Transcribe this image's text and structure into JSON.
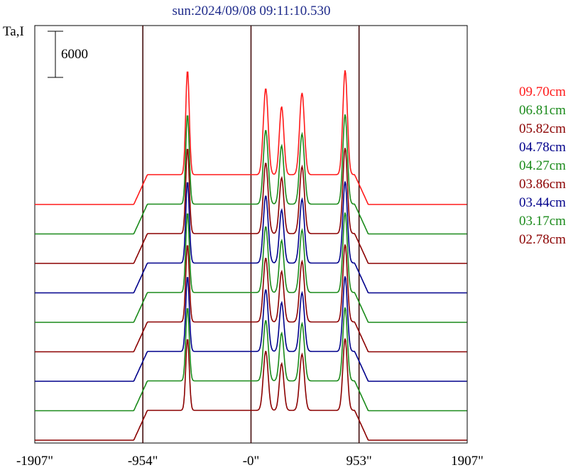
{
  "chart_data": {
    "type": "line",
    "title": "sun:2024/09/08 09:11:10.530",
    "ylabel": "Ta,I",
    "scale_bar_label": "6000",
    "x_ticks": [
      "-1907\"",
      "-954\"",
      "-0\"",
      "953\"",
      "1907\""
    ],
    "x_range": [
      -1907,
      1907
    ],
    "vertical_markers": [
      -954,
      0,
      953
    ],
    "grid": false,
    "legend_position": "right",
    "series": [
      {
        "name": "09.70cm",
        "color": "#ff1a1a",
        "peak_scale": 1.28,
        "baseline_level": 8
      },
      {
        "name": "06.81cm",
        "color": "#1a8a1a",
        "peak_scale": 1.1,
        "baseline_level": 7
      },
      {
        "name": "05.82cm",
        "color": "#8b0000",
        "peak_scale": 1.05,
        "baseline_level": 6
      },
      {
        "name": "04.78cm",
        "color": "#00008b",
        "peak_scale": 1.0,
        "baseline_level": 5
      },
      {
        "name": "04.27cm",
        "color": "#1a8a1a",
        "peak_scale": 0.98,
        "baseline_level": 4
      },
      {
        "name": "03.86cm",
        "color": "#8b0000",
        "peak_scale": 0.95,
        "baseline_level": 3
      },
      {
        "name": "03.44cm",
        "color": "#00008b",
        "peak_scale": 0.92,
        "baseline_level": 2
      },
      {
        "name": "03.17cm",
        "color": "#1a8a1a",
        "peak_scale": 0.9,
        "baseline_level": 1
      },
      {
        "name": "02.78cm",
        "color": "#8b0000",
        "peak_scale": 0.88,
        "baseline_level": 0
      }
    ],
    "profile_shape": {
      "disk_half_width": 954,
      "peaks": [
        {
          "x": -560,
          "h": 115,
          "w": 22
        },
        {
          "x": 130,
          "h": 95,
          "w": 30
        },
        {
          "x": 270,
          "h": 75,
          "w": 28
        },
        {
          "x": 450,
          "h": 90,
          "w": 30
        },
        {
          "x": 830,
          "h": 115,
          "w": 28
        }
      ]
    }
  }
}
